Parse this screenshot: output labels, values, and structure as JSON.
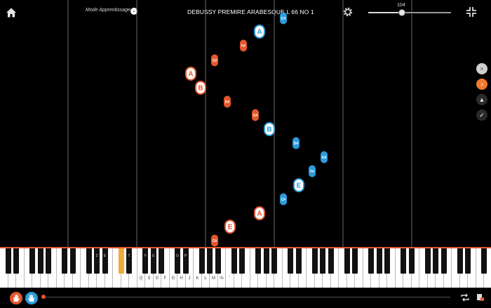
{
  "header": {
    "mode_label": "Mode Apprentissage",
    "title": "DEBUSSY PREMIRE ARABESQUE L 66 NO 1",
    "tempo": "104",
    "tempo_fraction": 0.41
  },
  "colors": {
    "left_hand": "#e4572e",
    "right_hand": "#2d9cdb",
    "highlight_key": "#f2a93b"
  },
  "falling_notes": [
    {
      "label": "C#",
      "hand": "right"
    },
    {
      "label": "A",
      "hand": "right"
    },
    {
      "label": "F#",
      "hand": "left"
    },
    {
      "label": "C#",
      "hand": "left"
    },
    {
      "label": "A",
      "hand": "left"
    },
    {
      "label": "B",
      "hand": "left"
    },
    {
      "label": "D#",
      "hand": "left"
    },
    {
      "label": "G#",
      "hand": "left"
    },
    {
      "label": "B",
      "hand": "right"
    },
    {
      "label": "D#",
      "hand": "right"
    },
    {
      "label": "G#",
      "hand": "right"
    },
    {
      "label": "F#",
      "hand": "right"
    },
    {
      "label": "E",
      "hand": "right"
    },
    {
      "label": "C#",
      "hand": "right"
    },
    {
      "label": "A",
      "hand": "left"
    },
    {
      "label": "E",
      "hand": "left"
    },
    {
      "label": "C#",
      "hand": "left"
    }
  ],
  "keyboard": {
    "black_key_letters": [
      "Z",
      "E",
      "T",
      "Y",
      "U",
      "O",
      "P",
      "¨"
    ],
    "white_key_letters": [
      "Q",
      "S",
      "D",
      "F",
      "G",
      "H",
      "J",
      "K",
      "L",
      "M",
      "%",
      "`"
    ],
    "highlight_black_key_index": 10
  },
  "side_buttons": [
    {
      "icon": "close-icon",
      "glyph": "×"
    },
    {
      "icon": "music-note-icon",
      "glyph": "♪"
    },
    {
      "icon": "metronome-icon",
      "glyph": "▲"
    },
    {
      "icon": "check-icon",
      "glyph": "✓"
    }
  ],
  "playback": {
    "progress_fraction": 0.0
  }
}
